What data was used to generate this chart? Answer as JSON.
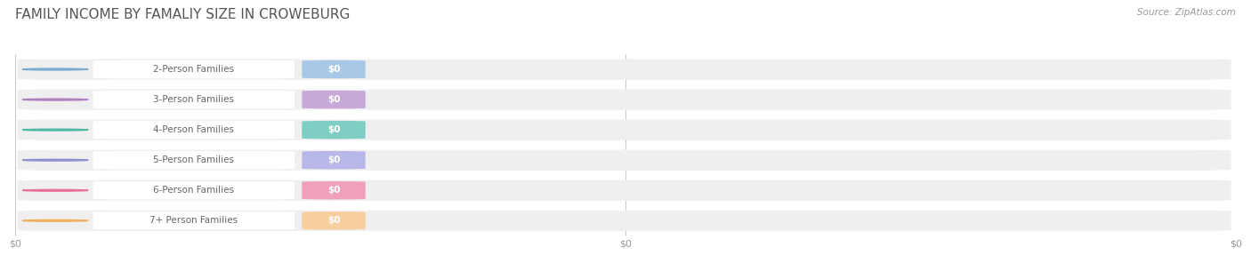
{
  "title": "FAMILY INCOME BY FAMALIY SIZE IN CROWEBURG",
  "source_text": "Source: ZipAtlas.com",
  "categories": [
    "2-Person Families",
    "3-Person Families",
    "4-Person Families",
    "5-Person Families",
    "6-Person Families",
    "7+ Person Families"
  ],
  "values": [
    0,
    0,
    0,
    0,
    0,
    0
  ],
  "bar_colors": [
    "#a8c8e8",
    "#c8a8d8",
    "#7ecec4",
    "#b8b8e8",
    "#f0a0b8",
    "#f8d0a0"
  ],
  "dot_colors": [
    "#7aaad0",
    "#b080c0",
    "#50b8a8",
    "#9090d0",
    "#e87098",
    "#f0b060"
  ],
  "bar_bg_color": "#efefef",
  "label_text_color": "#666666",
  "value_label_color": "#ffffff",
  "background_color": "#ffffff",
  "title_color": "#555555",
  "title_fontsize": 11,
  "label_fontsize": 7.5,
  "value_fontsize": 7.5,
  "source_fontsize": 7.5,
  "xtick_labels": [
    "$0",
    "$0",
    "$0"
  ],
  "xtick_positions": [
    0.0,
    0.5,
    1.0
  ]
}
